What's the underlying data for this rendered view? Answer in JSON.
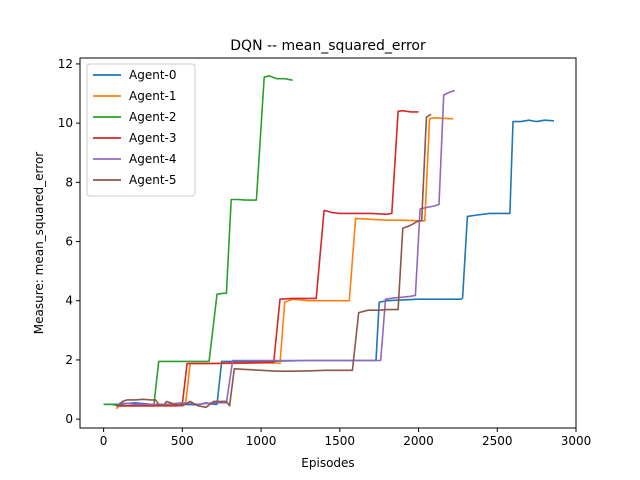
{
  "chart_data": {
    "type": "line",
    "title": "DQN -- mean_squared_error",
    "xlabel": "Episodes",
    "ylabel": "Measure: mean_squared_error",
    "xlim": [
      -150,
      3000
    ],
    "ylim": [
      -0.3,
      12.2
    ],
    "xticks": [
      0,
      500,
      1000,
      1500,
      2000,
      2500,
      3000
    ],
    "xtick_labels": [
      "0",
      "500",
      "1000",
      "1500",
      "2000",
      "2500",
      "3000"
    ],
    "yticks": [
      0,
      2,
      4,
      6,
      8,
      10,
      12
    ],
    "ytick_labels": [
      "0",
      "2",
      "4",
      "6",
      "8",
      "10",
      "12"
    ],
    "grid": false,
    "legend_position": "top-left",
    "series": [
      {
        "name": "Agent-0",
        "color": "#1f77b4",
        "points": [
          [
            0,
            0.5
          ],
          [
            100,
            0.5
          ],
          [
            200,
            0.55
          ],
          [
            300,
            0.5
          ],
          [
            400,
            0.5
          ],
          [
            500,
            0.5
          ],
          [
            600,
            0.48
          ],
          [
            650,
            0.55
          ],
          [
            700,
            0.5
          ],
          [
            720,
            0.5
          ],
          [
            750,
            1.95
          ],
          [
            1000,
            1.95
          ],
          [
            1300,
            1.98
          ],
          [
            1600,
            1.98
          ],
          [
            1700,
            1.98
          ],
          [
            1730,
            1.98
          ],
          [
            1750,
            3.95
          ],
          [
            1800,
            4.0
          ],
          [
            2000,
            4.05
          ],
          [
            2200,
            4.05
          ],
          [
            2270,
            4.05
          ],
          [
            2280,
            4.1
          ],
          [
            2310,
            6.85
          ],
          [
            2350,
            6.88
          ],
          [
            2450,
            6.95
          ],
          [
            2550,
            6.95
          ],
          [
            2580,
            6.95
          ],
          [
            2600,
            10.05
          ],
          [
            2650,
            10.05
          ],
          [
            2700,
            10.1
          ],
          [
            2750,
            10.05
          ],
          [
            2800,
            10.1
          ],
          [
            2860,
            10.08
          ]
        ]
      },
      {
        "name": "Agent-1",
        "color": "#ff7f0e",
        "points": [
          [
            80,
            0.35
          ],
          [
            100,
            0.45
          ],
          [
            200,
            0.45
          ],
          [
            300,
            0.45
          ],
          [
            400,
            0.45
          ],
          [
            500,
            0.5
          ],
          [
            520,
            0.5
          ],
          [
            550,
            1.88
          ],
          [
            800,
            1.88
          ],
          [
            1000,
            1.9
          ],
          [
            1100,
            1.9
          ],
          [
            1120,
            1.88
          ],
          [
            1150,
            3.95
          ],
          [
            1200,
            4.05
          ],
          [
            1300,
            4.0
          ],
          [
            1400,
            4.0
          ],
          [
            1560,
            4.0
          ],
          [
            1600,
            6.78
          ],
          [
            1700,
            6.75
          ],
          [
            1800,
            6.72
          ],
          [
            1900,
            6.72
          ],
          [
            2000,
            6.7
          ],
          [
            2040,
            6.7
          ],
          [
            2070,
            10.15
          ],
          [
            2100,
            10.18
          ],
          [
            2200,
            10.15
          ],
          [
            2220,
            10.15
          ]
        ]
      },
      {
        "name": "Agent-2",
        "color": "#2ca02c",
        "points": [
          [
            0,
            0.5
          ],
          [
            50,
            0.5
          ],
          [
            100,
            0.45
          ],
          [
            200,
            0.45
          ],
          [
            300,
            0.45
          ],
          [
            320,
            0.5
          ],
          [
            350,
            1.95
          ],
          [
            500,
            1.95
          ],
          [
            600,
            1.95
          ],
          [
            670,
            1.95
          ],
          [
            720,
            4.22
          ],
          [
            760,
            4.25
          ],
          [
            780,
            4.25
          ],
          [
            810,
            7.42
          ],
          [
            850,
            7.42
          ],
          [
            900,
            7.4
          ],
          [
            970,
            7.4
          ],
          [
            1020,
            11.55
          ],
          [
            1050,
            11.6
          ],
          [
            1100,
            11.5
          ],
          [
            1150,
            11.5
          ],
          [
            1200,
            11.45
          ]
        ]
      },
      {
        "name": "Agent-3",
        "color": "#d62728",
        "points": [
          [
            80,
            0.45
          ],
          [
            200,
            0.45
          ],
          [
            300,
            0.45
          ],
          [
            400,
            0.45
          ],
          [
            480,
            0.45
          ],
          [
            500,
            0.5
          ],
          [
            530,
            1.88
          ],
          [
            600,
            1.88
          ],
          [
            700,
            1.88
          ],
          [
            800,
            1.9
          ],
          [
            900,
            1.9
          ],
          [
            1050,
            1.92
          ],
          [
            1080,
            1.92
          ],
          [
            1120,
            4.05
          ],
          [
            1200,
            4.08
          ],
          [
            1300,
            4.08
          ],
          [
            1350,
            4.08
          ],
          [
            1400,
            7.05
          ],
          [
            1450,
            6.98
          ],
          [
            1500,
            6.95
          ],
          [
            1600,
            6.95
          ],
          [
            1700,
            6.95
          ],
          [
            1800,
            6.92
          ],
          [
            1830,
            6.95
          ],
          [
            1870,
            10.4
          ],
          [
            1900,
            10.42
          ],
          [
            1950,
            10.38
          ],
          [
            2000,
            10.38
          ]
        ]
      },
      {
        "name": "Agent-4",
        "color": "#9467bd",
        "points": [
          [
            100,
            0.55
          ],
          [
            200,
            0.5
          ],
          [
            300,
            0.5
          ],
          [
            400,
            0.5
          ],
          [
            500,
            0.55
          ],
          [
            600,
            0.5
          ],
          [
            700,
            0.55
          ],
          [
            780,
            0.55
          ],
          [
            820,
            1.98
          ],
          [
            900,
            1.98
          ],
          [
            1000,
            1.98
          ],
          [
            1200,
            1.98
          ],
          [
            1400,
            1.98
          ],
          [
            1600,
            1.98
          ],
          [
            1700,
            1.98
          ],
          [
            1760,
            1.98
          ],
          [
            1790,
            4.05
          ],
          [
            1850,
            4.1
          ],
          [
            1900,
            4.12
          ],
          [
            1950,
            4.15
          ],
          [
            1980,
            4.18
          ],
          [
            2010,
            7.1
          ],
          [
            2050,
            7.15
          ],
          [
            2100,
            7.2
          ],
          [
            2130,
            7.25
          ],
          [
            2160,
            10.95
          ],
          [
            2200,
            11.05
          ],
          [
            2230,
            11.1
          ]
        ]
      },
      {
        "name": "Agent-5",
        "color": "#8c564b",
        "points": [
          [
            100,
            0.45
          ],
          [
            120,
            0.6
          ],
          [
            150,
            0.65
          ],
          [
            200,
            0.65
          ],
          [
            250,
            0.67
          ],
          [
            300,
            0.65
          ],
          [
            330,
            0.65
          ],
          [
            350,
            0.5
          ],
          [
            380,
            0.45
          ],
          [
            400,
            0.6
          ],
          [
            450,
            0.5
          ],
          [
            500,
            0.45
          ],
          [
            550,
            0.6
          ],
          [
            600,
            0.45
          ],
          [
            650,
            0.4
          ],
          [
            700,
            0.6
          ],
          [
            750,
            0.6
          ],
          [
            780,
            0.6
          ],
          [
            800,
            0.45
          ],
          [
            830,
            1.7
          ],
          [
            900,
            1.68
          ],
          [
            1000,
            1.65
          ],
          [
            1100,
            1.62
          ],
          [
            1200,
            1.62
          ],
          [
            1300,
            1.63
          ],
          [
            1400,
            1.65
          ],
          [
            1500,
            1.65
          ],
          [
            1580,
            1.65
          ],
          [
            1620,
            3.6
          ],
          [
            1680,
            3.68
          ],
          [
            1750,
            3.68
          ],
          [
            1800,
            3.7
          ],
          [
            1850,
            3.7
          ],
          [
            1870,
            3.7
          ],
          [
            1900,
            6.45
          ],
          [
            1950,
            6.55
          ],
          [
            2000,
            6.7
          ],
          [
            2020,
            6.7
          ],
          [
            2050,
            10.2
          ],
          [
            2080,
            10.3
          ]
        ]
      }
    ]
  }
}
